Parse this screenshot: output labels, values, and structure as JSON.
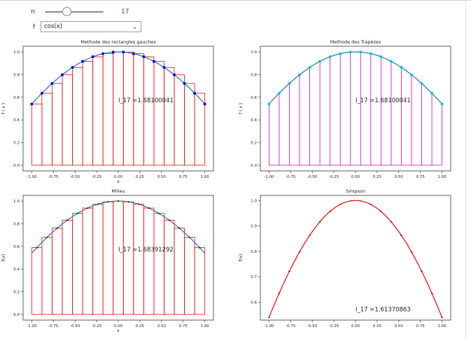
{
  "controls": {
    "n_label": "n",
    "n_value": "17",
    "n_fraction": 0.35,
    "f_label": "f",
    "f_value": "cos(x)",
    "f_options": [
      "cos(x)"
    ]
  },
  "chart_data": [
    {
      "type": "bar",
      "title": "Methode des rectangles gauches",
      "xlabel": "x",
      "ylabel": "f ( x )",
      "xlim": [
        -1.1,
        1.1
      ],
      "ylim": [
        -0.05,
        1.05
      ],
      "xticks": [
        "-1.00",
        "-0.75",
        "-0.50",
        "-0.25",
        "0.00",
        "0.25",
        "0.50",
        "0.75",
        "1.00"
      ],
      "yticks": [
        "0.0",
        "0.2",
        "0.4",
        "0.6",
        "0.8",
        "1.0"
      ],
      "annotation": "I_17 =1.68100041",
      "n": 17,
      "function": "cos",
      "method": "left",
      "colors": {
        "curve": "#1f77b4",
        "bars": "#ff0000",
        "points": "#0000ee"
      }
    },
    {
      "type": "area",
      "title": "Methode des Trapèzes",
      "xlabel": "",
      "ylabel": "f ( x )",
      "xlim": [
        -1.1,
        1.1
      ],
      "ylim": [
        -0.05,
        1.05
      ],
      "xticks": [
        "-1.00",
        "-0.75",
        "-0.50",
        "-0.25",
        "0.00",
        "0.25",
        "0.50",
        "0.75",
        "1.00"
      ],
      "yticks": [
        "0.0",
        "0.2",
        "0.4",
        "0.6",
        "0.8",
        "1.0"
      ],
      "annotation": "I_17 =1.68100041",
      "n": 17,
      "function": "cos",
      "method": "trapeze",
      "colors": {
        "curve": "#1f77b4",
        "bars": "#cc00cc",
        "points": "#17becf"
      }
    },
    {
      "type": "bar",
      "title": "Milieu",
      "xlabel": "x",
      "ylabel": "f(x)",
      "xlim": [
        -1.1,
        1.1
      ],
      "ylim": [
        -0.05,
        1.05
      ],
      "xticks": [
        "-1.00",
        "-0.75",
        "-0.50",
        "-0.25",
        "0.00",
        "0.25",
        "0.50",
        "0.75",
        "1.00"
      ],
      "yticks": [
        "0.0",
        "0.2",
        "0.4",
        "0.6",
        "0.8",
        "1.0"
      ],
      "annotation": "I_17 =1.68391292",
      "n": 17,
      "function": "cos",
      "method": "midpoint",
      "colors": {
        "curve": "#1f77b4",
        "bars": "#ff0000",
        "points": "#0000ee"
      }
    },
    {
      "type": "line",
      "title": "Simpson",
      "xlabel": "",
      "ylabel": "f(x)",
      "xlim": [
        -1.1,
        1.1
      ],
      "ylim": [
        0.53,
        1.02
      ],
      "xticks": [
        "-1.00",
        "-0.75",
        "-0.50",
        "-0.25",
        "0.00",
        "0.25",
        "0.50",
        "0.75",
        "1.00"
      ],
      "yticks": [
        "0.6",
        "0.7",
        "0.8",
        "0.9",
        "1.0"
      ],
      "annotation": "I_17 =1.61370863",
      "n": 17,
      "function": "cos",
      "method": "simpson",
      "colors": {
        "curve": "#1f77b4",
        "bars": "#ff0000",
        "points": "#333333"
      }
    }
  ]
}
